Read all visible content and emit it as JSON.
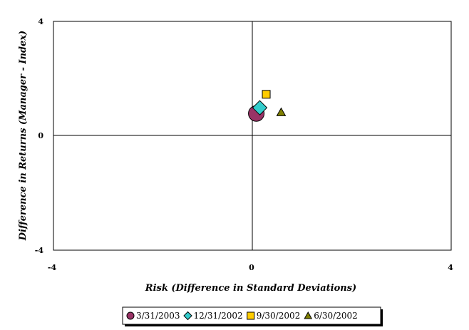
{
  "chart_data": {
    "type": "scatter",
    "title": "",
    "xlabel": "Risk (Difference in Standard Deviations)",
    "ylabel": "Difference in Returns (Manager - Index)",
    "xlim": [
      -4,
      4
    ],
    "ylim": [
      -4,
      4
    ],
    "x_ticks": [
      "-4",
      "0",
      "4"
    ],
    "y_ticks": [
      "4",
      "0",
      "-4"
    ],
    "grid": false,
    "legend_position": "bottom",
    "series": [
      {
        "name": "3/31/2003",
        "marker": "circle",
        "color": "#993366",
        "x": [
          0.08
        ],
        "y": [
          0.78
        ]
      },
      {
        "name": "12/31/2002",
        "marker": "diamond",
        "color": "#33CCCC",
        "x": [
          0.15
        ],
        "y": [
          0.98
        ]
      },
      {
        "name": "9/30/2002",
        "marker": "square",
        "color": "#FFCC00",
        "x": [
          0.28
        ],
        "y": [
          1.45
        ]
      },
      {
        "name": "6/30/2002",
        "marker": "triangle",
        "color": "#808000",
        "x": [
          0.58
        ],
        "y": [
          0.82
        ]
      }
    ]
  }
}
